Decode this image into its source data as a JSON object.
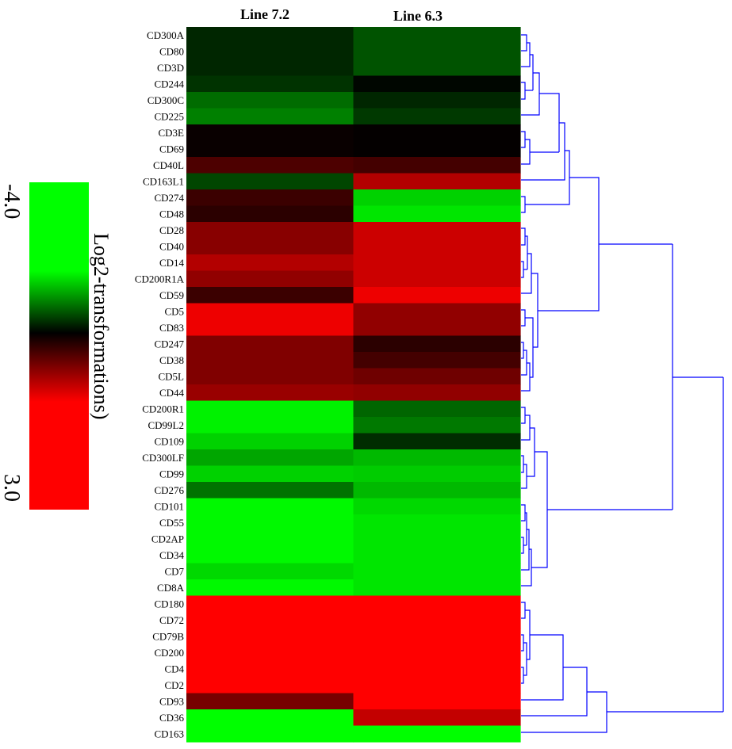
{
  "chart_data": {
    "type": "heatmap",
    "columns": [
      "Line 7.2",
      "Line 6.3"
    ],
    "rows": [
      "CD300A",
      "CD80",
      "CD3D",
      "CD244",
      "CD300C",
      "CD225",
      "CD3E",
      "CD69",
      "CD40L",
      "CD163L1",
      "CD274",
      "CD48",
      "CD28",
      "CD40",
      "CD14",
      "CD200R1A",
      "CD59",
      "CD5",
      "CD83",
      "CD247",
      "CD38",
      "CD5L",
      "CD44",
      "CD200R1",
      "CD99L2",
      "CD109",
      "CD300LF",
      "CD99",
      "CD276",
      "CD101",
      "CD55",
      "CD2AP",
      "CD34",
      "CD7",
      "CD8A",
      "CD180",
      "CD72",
      "CD79B",
      "CD200",
      "CD4",
      "CD2",
      "CD93",
      "CD36",
      "CD163"
    ],
    "values": [
      [
        -0.6,
        -1.3
      ],
      [
        -0.6,
        -1.3
      ],
      [
        -0.6,
        -1.3
      ],
      [
        -0.8,
        -0.1
      ],
      [
        -1.7,
        -0.6
      ],
      [
        -2.0,
        -0.9
      ],
      [
        0.1,
        0.05
      ],
      [
        0.1,
        0.05
      ],
      [
        0.9,
        0.8
      ],
      [
        -1.1,
        2.1
      ],
      [
        0.7,
        -3.3
      ],
      [
        0.5,
        -3.6
      ],
      [
        1.6,
        2.4
      ],
      [
        1.6,
        2.4
      ],
      [
        2.1,
        2.4
      ],
      [
        1.7,
        2.4
      ],
      [
        0.7,
        2.8
      ],
      [
        2.8,
        1.7
      ],
      [
        2.8,
        1.7
      ],
      [
        1.5,
        0.5
      ],
      [
        1.5,
        0.8
      ],
      [
        1.5,
        1.3
      ],
      [
        1.8,
        1.7
      ],
      [
        -3.8,
        -1.6
      ],
      [
        -3.8,
        -1.9
      ],
      [
        -3.3,
        -0.7
      ],
      [
        -2.6,
        -2.9
      ],
      [
        -3.3,
        -3.2
      ],
      [
        -1.8,
        -2.9
      ],
      [
        -3.9,
        -3.4
      ],
      [
        -3.9,
        -3.6
      ],
      [
        -3.9,
        -3.6
      ],
      [
        -3.9,
        -3.6
      ],
      [
        -3.4,
        -3.6
      ],
      [
        -3.9,
        -3.6
      ],
      [
        3.0,
        3.0
      ],
      [
        3.0,
        3.0
      ],
      [
        3.0,
        3.0
      ],
      [
        3.0,
        3.0
      ],
      [
        3.0,
        3.0
      ],
      [
        3.0,
        3.0
      ],
      [
        1.4,
        3.0
      ],
      [
        -4.0,
        2.3
      ],
      [
        -4.0,
        -4.0
      ]
    ],
    "color_scale": {
      "min": -4.0,
      "max": 3.0,
      "low_color": "#00ff00",
      "mid_color": "#000000",
      "high_color": "#ff0000",
      "title": "Log2-transformations)",
      "min_label": "-4.0",
      "max_label": "3.0"
    },
    "dendrogram_color": "#0000ff"
  }
}
